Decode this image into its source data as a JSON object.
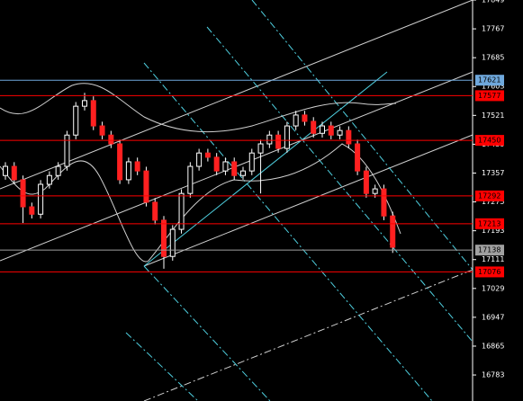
{
  "chart_data": {
    "type": "candlestick",
    "ylim": [
      16709,
      17849
    ],
    "yticks": [
      17849,
      17767,
      17685,
      17603,
      17521,
      17439,
      17357,
      17275,
      17193,
      17111,
      17029,
      16947,
      16865,
      16783
    ],
    "up_color": "#ffffff",
    "down_color": "#ff2020",
    "open": [
      17350,
      17376,
      17338,
      17261,
      17240,
      17325,
      17350,
      17376,
      17465,
      17547,
      17563,
      17491,
      17465,
      17440,
      17338,
      17389,
      17363,
      17274,
      17223,
      17120,
      17197,
      17299,
      17376,
      17414,
      17402,
      17363,
      17389,
      17350,
      17363,
      17414,
      17440,
      17465,
      17427,
      17491,
      17522,
      17504,
      17470,
      17491,
      17465,
      17478,
      17440,
      17363,
      17299,
      17312,
      17235
    ],
    "high": [
      17388,
      17388,
      17350,
      17273,
      17337,
      17362,
      17388,
      17477,
      17559,
      17585,
      17575,
      17503,
      17477,
      17452,
      17401,
      17401,
      17375,
      17286,
      17235,
      17209,
      17311,
      17388,
      17426,
      17426,
      17414,
      17401,
      17401,
      17375,
      17426,
      17452,
      17477,
      17477,
      17503,
      17534,
      17534,
      17516,
      17503,
      17503,
      17490,
      17490,
      17452,
      17375,
      17324,
      17324,
      17247
    ],
    "low": [
      17338,
      17326,
      17215,
      17228,
      17228,
      17313,
      17338,
      17364,
      17453,
      17535,
      17479,
      17453,
      17428,
      17326,
      17326,
      17351,
      17262,
      17211,
      17085,
      17108,
      17185,
      17287,
      17364,
      17390,
      17351,
      17351,
      17338,
      17338,
      17351,
      17299,
      17428,
      17415,
      17415,
      17479,
      17492,
      17458,
      17458,
      17453,
      17453,
      17428,
      17351,
      17287,
      17287,
      17223,
      17130
    ],
    "close": [
      17376,
      17338,
      17261,
      17240,
      17325,
      17350,
      17376,
      17465,
      17547,
      17563,
      17491,
      17465,
      17440,
      17338,
      17389,
      17363,
      17274,
      17223,
      17120,
      17197,
      17299,
      17376,
      17414,
      17402,
      17363,
      17389,
      17350,
      17363,
      17414,
      17440,
      17465,
      17427,
      17491,
      17522,
      17504,
      17470,
      17491,
      17465,
      17478,
      17440,
      17363,
      17299,
      17312,
      17235,
      17146
    ],
    "levels": [
      {
        "value": 17621,
        "color": "#6fa8dc"
      },
      {
        "value": 17577,
        "color": "#ff0000"
      },
      {
        "value": 17450,
        "color": "#ff0000"
      },
      {
        "value": 17292,
        "color": "#ff0000"
      },
      {
        "value": 17213,
        "color": "#ff0000"
      },
      {
        "value": 17138,
        "color": "#a0a0a0"
      },
      {
        "value": 17076,
        "color": "#ff0000"
      }
    ]
  }
}
